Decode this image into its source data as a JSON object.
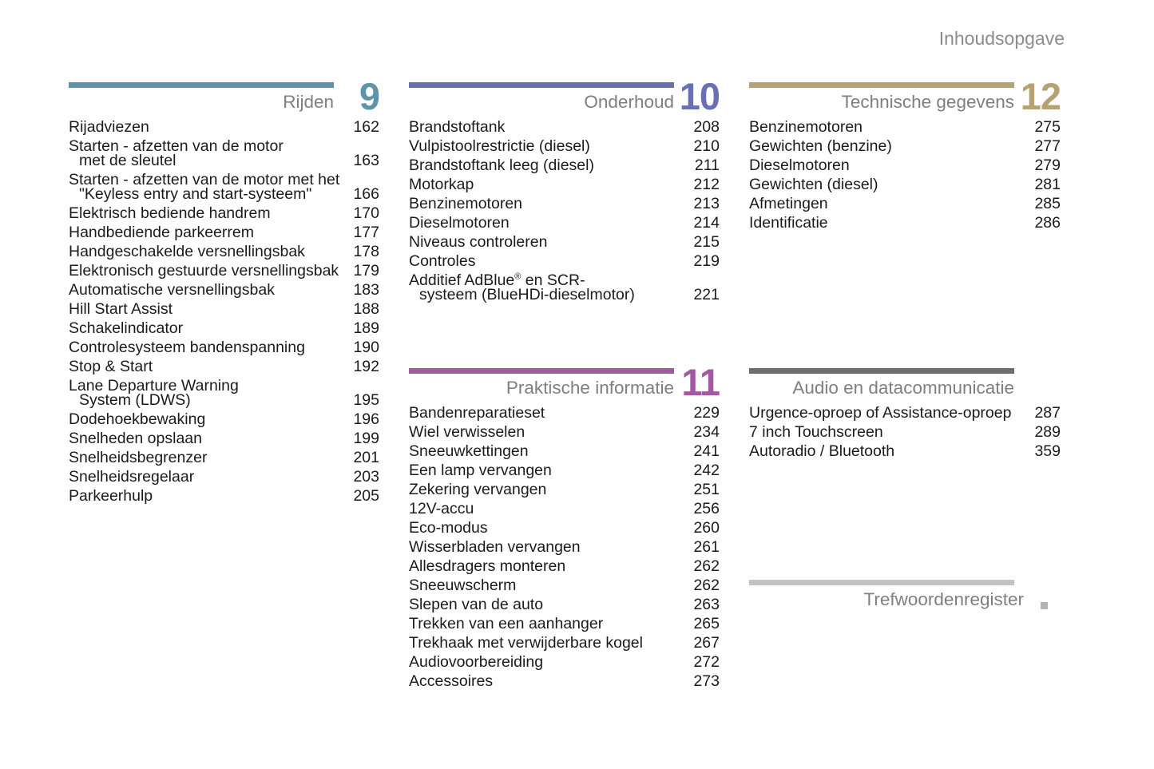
{
  "page_title": "Inhoudsopgave",
  "sections": [
    {
      "id": "rijden",
      "title": "Rijden",
      "number": "9",
      "accent_color": "#5b94ab",
      "entries": [
        {
          "label": [
            "Rijadviezen"
          ],
          "page": "162"
        },
        {
          "label": [
            "Starten - afzetten van de motor",
            "met de sleutel"
          ],
          "page": "163"
        },
        {
          "label": [
            "Starten - afzetten van de motor met het",
            "\"Keyless entry and start-systeem\""
          ],
          "page": "166"
        },
        {
          "label": [
            "Elektrisch bediende handrem"
          ],
          "page": "170"
        },
        {
          "label": [
            "Handbediende parkeerrem"
          ],
          "page": "177"
        },
        {
          "label": [
            "Handgeschakelde versnellingsbak"
          ],
          "page": "178"
        },
        {
          "label": [
            "Elektronisch gestuurde versnellingsbak"
          ],
          "page": "179"
        },
        {
          "label": [
            "Automatische versnellingsbak"
          ],
          "page": "183"
        },
        {
          "label": [
            "Hill Start Assist"
          ],
          "page": "188"
        },
        {
          "label": [
            "Schakelindicator"
          ],
          "page": "189"
        },
        {
          "label": [
            "Controlesysteem bandenspanning"
          ],
          "page": "190"
        },
        {
          "label": [
            "Stop & Start"
          ],
          "page": "192"
        },
        {
          "label": [
            "Lane Departure Warning",
            "System (LDWS)"
          ],
          "page": "195"
        },
        {
          "label": [
            "Dodehoekbewaking"
          ],
          "page": "196"
        },
        {
          "label": [
            "Snelheden opslaan"
          ],
          "page": "199"
        },
        {
          "label": [
            "Snelheidsbegrenzer"
          ],
          "page": "201"
        },
        {
          "label": [
            "Snelheidsregelaar"
          ],
          "page": "203"
        },
        {
          "label": [
            "Parkeerhulp"
          ],
          "page": "205"
        }
      ]
    },
    {
      "id": "onderhoud",
      "title": "Onderhoud",
      "number": "10",
      "accent_color": "#6670b3",
      "entries": [
        {
          "label": [
            "Brandstoftank"
          ],
          "page": "208"
        },
        {
          "label": [
            "Vulpistoolrestrictie (diesel)"
          ],
          "page": "210"
        },
        {
          "label": [
            "Brandstoftank leeg (diesel)"
          ],
          "page": "211"
        },
        {
          "label": [
            "Motorkap"
          ],
          "page": "212"
        },
        {
          "label": [
            "Benzinemotoren"
          ],
          "page": "213"
        },
        {
          "label": [
            "Dieselmotoren"
          ],
          "page": "214"
        },
        {
          "label": [
            "Niveaus controleren"
          ],
          "page": "215"
        },
        {
          "label": [
            "Controles"
          ],
          "page": "219"
        },
        {
          "label": [
            "Additief AdBlue® en SCR-",
            "systeem (BlueHDi-dieselmotor)"
          ],
          "page": "221"
        }
      ]
    },
    {
      "id": "praktische",
      "title": "Praktische informatie",
      "number": "11",
      "accent_color": "#a259a2",
      "entries": [
        {
          "label": [
            "Bandenreparatieset"
          ],
          "page": "229"
        },
        {
          "label": [
            "Wiel verwisselen"
          ],
          "page": "234"
        },
        {
          "label": [
            "Sneeuwkettingen"
          ],
          "page": "241"
        },
        {
          "label": [
            "Een lamp vervangen"
          ],
          "page": "242"
        },
        {
          "label": [
            "Zekering vervangen"
          ],
          "page": "251"
        },
        {
          "label": [
            "12V-accu"
          ],
          "page": "256"
        },
        {
          "label": [
            "Eco-modus"
          ],
          "page": "260"
        },
        {
          "label": [
            "Wisserbladen vervangen"
          ],
          "page": "261"
        },
        {
          "label": [
            "Allesdragers monteren"
          ],
          "page": "262"
        },
        {
          "label": [
            "Sneeuwscherm"
          ],
          "page": "262"
        },
        {
          "label": [
            "Slepen van de auto"
          ],
          "page": "263"
        },
        {
          "label": [
            "Trekken van een aanhanger"
          ],
          "page": "265"
        },
        {
          "label": [
            "Trekhaak met verwijderbare kogel"
          ],
          "page": "267"
        },
        {
          "label": [
            "Audiovoorbereiding"
          ],
          "page": "272"
        },
        {
          "label": [
            "Accessoires"
          ],
          "page": "273"
        }
      ]
    },
    {
      "id": "technische",
      "title": "Technische gegevens",
      "number": "12",
      "accent_color": "#b5a173",
      "entries": [
        {
          "label": [
            "Benzinemotoren"
          ],
          "page": "275"
        },
        {
          "label": [
            "Gewichten (benzine)"
          ],
          "page": "277"
        },
        {
          "label": [
            "Dieselmotoren"
          ],
          "page": "279"
        },
        {
          "label": [
            "Gewichten (diesel)"
          ],
          "page": "281"
        },
        {
          "label": [
            "Afmetingen"
          ],
          "page": "285"
        },
        {
          "label": [
            "Identificatie"
          ],
          "page": "286"
        }
      ]
    },
    {
      "id": "audio",
      "title": "Audio en datacommunicatie",
      "number": "",
      "accent_color": "#6e6e6e",
      "entries": [
        {
          "label": [
            "Urgence-oproep of Assistance-oproep"
          ],
          "page": "287"
        },
        {
          "label": [
            "7 inch Touchscreen"
          ],
          "page": "289"
        },
        {
          "label": [
            "Autoradio / Bluetooth"
          ],
          "page": "359"
        }
      ]
    },
    {
      "id": "trefwoorden",
      "title": "Trefwoordenregister",
      "number": "",
      "accent_color": "#c3c3c3",
      "index_square_color": "#b3b3b3",
      "entries": []
    }
  ]
}
